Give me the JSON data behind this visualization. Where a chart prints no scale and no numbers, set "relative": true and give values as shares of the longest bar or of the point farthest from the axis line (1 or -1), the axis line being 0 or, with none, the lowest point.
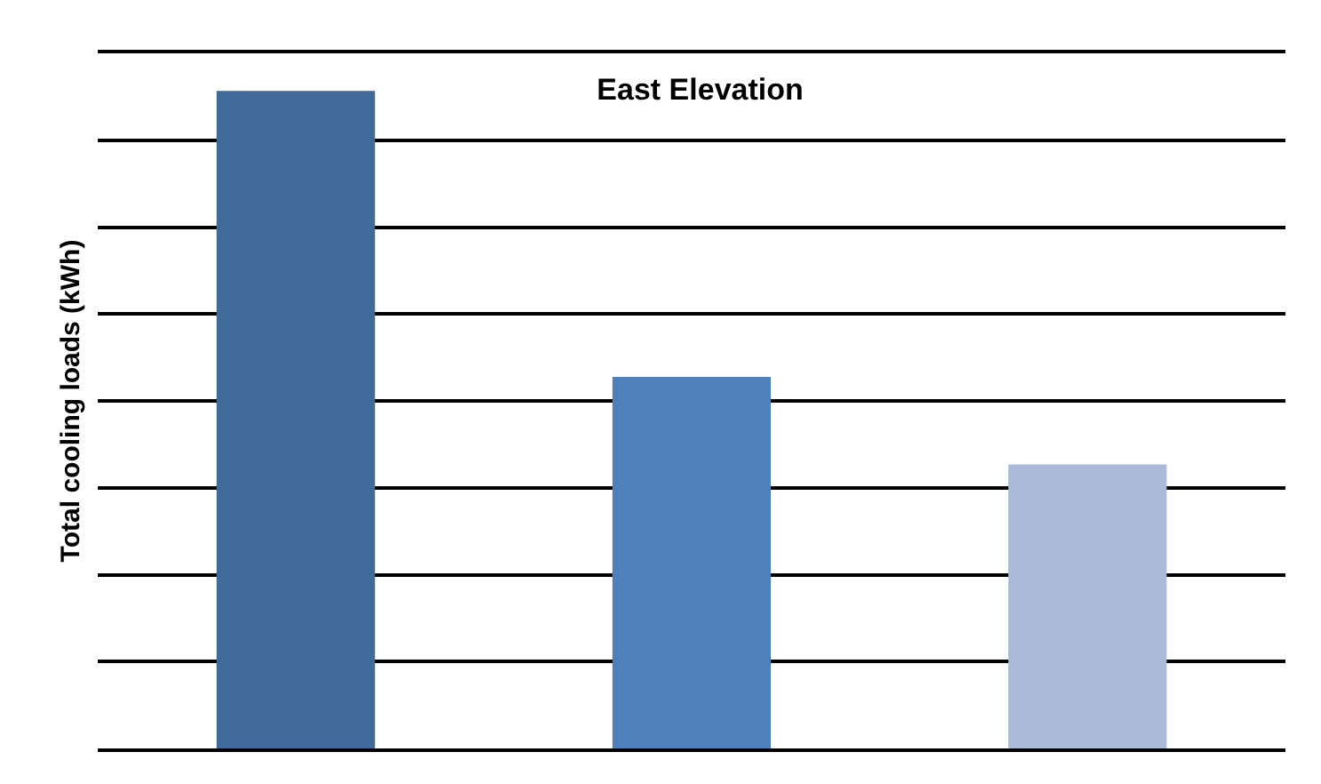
{
  "chart_data": {
    "type": "bar",
    "title": "East Elevation",
    "ylabel": "Total cooling loads (kWh)",
    "relative": true,
    "grid": "y",
    "categories": [
      null,
      null,
      null
    ],
    "values": [
      1,
      0.565,
      0.432
    ],
    "colors": [
      "#406a9a",
      "#4e80bb",
      "#aabad8"
    ]
  }
}
